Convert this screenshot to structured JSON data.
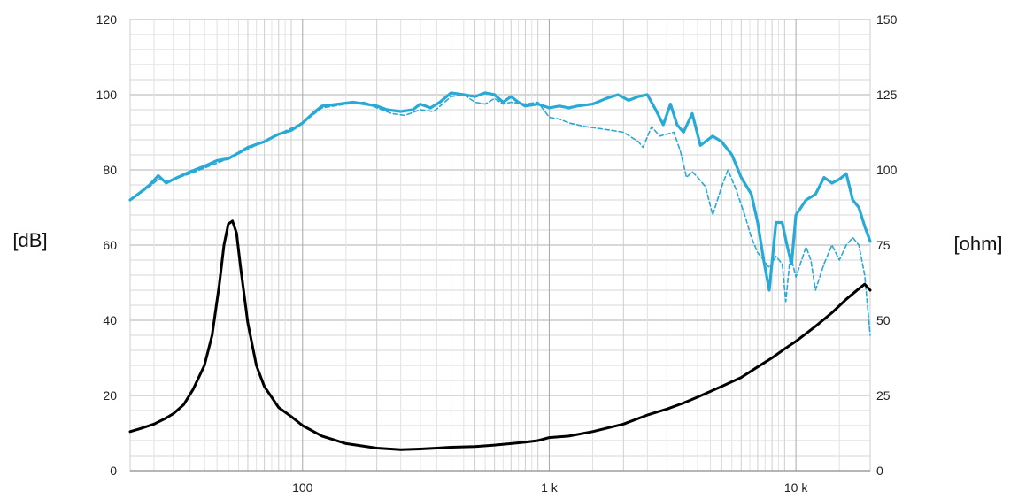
{
  "chart_data": {
    "type": "line",
    "title": "",
    "xlabel": "",
    "x_scale": "log",
    "xlim": [
      20,
      20000
    ],
    "x_ticks": [
      {
        "value": 100,
        "label": "100"
      },
      {
        "value": 1000,
        "label": "1 k"
      },
      {
        "value": 10000,
        "label": "10 k"
      }
    ],
    "y_left": {
      "label": "[dB]",
      "lim": [
        0,
        120
      ],
      "ticks": [
        "0",
        "20",
        "40",
        "60",
        "80",
        "100",
        "120"
      ]
    },
    "y_right": {
      "label": "[ohm]",
      "lim": [
        0,
        150
      ],
      "ticks": [
        "0",
        "25",
        "50",
        "75",
        "100",
        "125",
        "150"
      ]
    },
    "grid": true,
    "series": [
      {
        "axis": "left",
        "style": "solid",
        "color": "#29a9d6",
        "points": [
          [
            20,
            72
          ],
          [
            22,
            74
          ],
          [
            24,
            76
          ],
          [
            26,
            78.5
          ],
          [
            28,
            76.5
          ],
          [
            30,
            77.5
          ],
          [
            35,
            79.5
          ],
          [
            40,
            81
          ],
          [
            45,
            82.5
          ],
          [
            50,
            83
          ],
          [
            55,
            84.5
          ],
          [
            60,
            86
          ],
          [
            70,
            87.5
          ],
          [
            80,
            89.5
          ],
          [
            90,
            90.5
          ],
          [
            100,
            92.5
          ],
          [
            110,
            95
          ],
          [
            120,
            97
          ],
          [
            140,
            97.5
          ],
          [
            160,
            98
          ],
          [
            180,
            97.5
          ],
          [
            200,
            97
          ],
          [
            220,
            96
          ],
          [
            250,
            95.5
          ],
          [
            280,
            96
          ],
          [
            300,
            97.5
          ],
          [
            330,
            96.5
          ],
          [
            360,
            98
          ],
          [
            400,
            100.5
          ],
          [
            450,
            100
          ],
          [
            500,
            99.5
          ],
          [
            550,
            100.5
          ],
          [
            600,
            100
          ],
          [
            650,
            98
          ],
          [
            700,
            99.5
          ],
          [
            750,
            98
          ],
          [
            800,
            97
          ],
          [
            900,
            97.5
          ],
          [
            1000,
            96.5
          ],
          [
            1100,
            97
          ],
          [
            1200,
            96.5
          ],
          [
            1300,
            97
          ],
          [
            1500,
            97.5
          ],
          [
            1700,
            99
          ],
          [
            1900,
            100
          ],
          [
            2100,
            98.5
          ],
          [
            2300,
            99.5
          ],
          [
            2500,
            100
          ],
          [
            2700,
            96
          ],
          [
            2900,
            92
          ],
          [
            3100,
            97.5
          ],
          [
            3300,
            92
          ],
          [
            3500,
            90
          ],
          [
            3800,
            95
          ],
          [
            4100,
            86.5
          ],
          [
            4600,
            89
          ],
          [
            5000,
            87.5
          ],
          [
            5500,
            84
          ],
          [
            6000,
            78
          ],
          [
            6600,
            73.5
          ],
          [
            7000,
            66
          ],
          [
            7400,
            56
          ],
          [
            7800,
            48
          ],
          [
            8300,
            66
          ],
          [
            8800,
            66
          ],
          [
            9200,
            60
          ],
          [
            9600,
            55
          ],
          [
            10000,
            68
          ],
          [
            11000,
            72
          ],
          [
            12000,
            73.5
          ],
          [
            13000,
            78
          ],
          [
            14000,
            76.5
          ],
          [
            15000,
            77.5
          ],
          [
            16000,
            79
          ],
          [
            17000,
            72
          ],
          [
            18000,
            70
          ],
          [
            19000,
            65
          ],
          [
            20000,
            61
          ]
        ]
      },
      {
        "axis": "left",
        "style": "dashed",
        "color": "#29a9d6",
        "points": [
          [
            20,
            72
          ],
          [
            24,
            75.5
          ],
          [
            26,
            77.5
          ],
          [
            28,
            77
          ],
          [
            30,
            77.5
          ],
          [
            35,
            79
          ],
          [
            40,
            80.5
          ],
          [
            50,
            83
          ],
          [
            60,
            85.5
          ],
          [
            80,
            89.5
          ],
          [
            100,
            92.5
          ],
          [
            120,
            96.5
          ],
          [
            150,
            97.5
          ],
          [
            180,
            98
          ],
          [
            200,
            96.5
          ],
          [
            230,
            95
          ],
          [
            260,
            94.5
          ],
          [
            300,
            96
          ],
          [
            340,
            95.5
          ],
          [
            400,
            99.5
          ],
          [
            450,
            100
          ],
          [
            500,
            98
          ],
          [
            550,
            97.5
          ],
          [
            600,
            99
          ],
          [
            650,
            97.5
          ],
          [
            700,
            98
          ],
          [
            800,
            97.5
          ],
          [
            900,
            98
          ],
          [
            1000,
            94
          ],
          [
            1100,
            93.5
          ],
          [
            1200,
            92.5
          ],
          [
            1400,
            91.5
          ],
          [
            1600,
            91
          ],
          [
            1800,
            90.5
          ],
          [
            2000,
            90
          ],
          [
            2300,
            87.5
          ],
          [
            2400,
            86
          ],
          [
            2600,
            91.5
          ],
          [
            2800,
            89
          ],
          [
            3000,
            89.5
          ],
          [
            3200,
            90
          ],
          [
            3400,
            85
          ],
          [
            3600,
            78
          ],
          [
            3800,
            79.5
          ],
          [
            4000,
            78
          ],
          [
            4300,
            75.5
          ],
          [
            4600,
            68
          ],
          [
            5000,
            75.5
          ],
          [
            5300,
            80
          ],
          [
            5700,
            75
          ],
          [
            6200,
            68
          ],
          [
            6600,
            62
          ],
          [
            7000,
            58
          ],
          [
            7400,
            56
          ],
          [
            7800,
            54
          ],
          [
            8300,
            57
          ],
          [
            8800,
            55
          ],
          [
            9100,
            45
          ],
          [
            9500,
            57.5
          ],
          [
            10000,
            51.5
          ],
          [
            11000,
            59.5
          ],
          [
            11500,
            56
          ],
          [
            12000,
            48
          ],
          [
            13000,
            55
          ],
          [
            14000,
            60
          ],
          [
            15000,
            56
          ],
          [
            16000,
            60
          ],
          [
            17000,
            62
          ],
          [
            18000,
            60
          ],
          [
            19000,
            52
          ],
          [
            20000,
            36
          ]
        ]
      },
      {
        "axis": "right",
        "style": "solid",
        "color": "#000000",
        "points": [
          [
            20,
            13
          ],
          [
            22,
            14
          ],
          [
            25,
            15.5
          ],
          [
            28,
            17.5
          ],
          [
            30,
            19
          ],
          [
            33,
            22
          ],
          [
            36,
            27
          ],
          [
            40,
            35
          ],
          [
            43,
            45
          ],
          [
            46,
            62
          ],
          [
            48,
            75
          ],
          [
            50,
            82
          ],
          [
            52,
            83
          ],
          [
            54,
            79
          ],
          [
            56,
            68
          ],
          [
            60,
            49
          ],
          [
            65,
            35
          ],
          [
            70,
            28
          ],
          [
            80,
            21
          ],
          [
            90,
            18
          ],
          [
            100,
            15
          ],
          [
            120,
            11.5
          ],
          [
            150,
            9
          ],
          [
            200,
            7.5
          ],
          [
            250,
            7
          ],
          [
            300,
            7.2
          ],
          [
            350,
            7.5
          ],
          [
            400,
            7.8
          ],
          [
            500,
            8
          ],
          [
            600,
            8.5
          ],
          [
            700,
            9
          ],
          [
            800,
            9.5
          ],
          [
            900,
            10
          ],
          [
            1000,
            11
          ],
          [
            1200,
            11.5
          ],
          [
            1500,
            13
          ],
          [
            2000,
            15.5
          ],
          [
            2500,
            18.5
          ],
          [
            3000,
            20.5
          ],
          [
            3500,
            22.5
          ],
          [
            4000,
            24.5
          ],
          [
            5000,
            28
          ],
          [
            6000,
            31
          ],
          [
            7000,
            34.5
          ],
          [
            8000,
            37.5
          ],
          [
            9000,
            40.5
          ],
          [
            10000,
            43
          ],
          [
            12000,
            48
          ],
          [
            14000,
            52.5
          ],
          [
            16000,
            57
          ],
          [
            18000,
            60.5
          ],
          [
            19000,
            62
          ],
          [
            20000,
            60
          ]
        ]
      }
    ]
  }
}
